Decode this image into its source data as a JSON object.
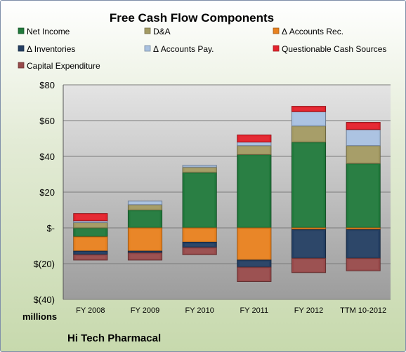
{
  "chart_data": {
    "type": "bar",
    "stacked": true,
    "title": "Free Cash Flow Components",
    "unit_label": "millions",
    "company": "Hi Tech Pharmacal",
    "categories": [
      "FY 2008",
      "FY 2009",
      "FY 2010",
      "FY 2011",
      "FY 2012",
      "TTM 10-2012"
    ],
    "ylim": [
      -40,
      80
    ],
    "yticks": [
      80,
      60,
      40,
      20,
      0,
      -20,
      -40
    ],
    "ytick_labels": [
      "$80",
      "$60",
      "$40",
      "$20",
      "$-",
      "$(20)",
      "$(40)"
    ],
    "grid": true,
    "legend_position": "top",
    "series": [
      {
        "name": "Net Income",
        "color": "#217a3c",
        "values": [
          -5,
          10,
          31,
          41,
          48,
          36
        ]
      },
      {
        "name": "D&A",
        "color": "#a39a63",
        "values": [
          3,
          3,
          3,
          5,
          9,
          10
        ]
      },
      {
        "name": "Δ Accounts Rec.",
        "color": "#e8811f",
        "values": [
          -8,
          -13,
          -8,
          -18,
          -1,
          -1
        ]
      },
      {
        "name": "Δ Inventories",
        "color": "#243f63",
        "values": [
          -2,
          -1,
          -3,
          -4,
          -16,
          -16
        ]
      },
      {
        "name": "Δ Accounts Pay.",
        "color": "#a9c1e0",
        "values": [
          1,
          2,
          1,
          2,
          8,
          9
        ]
      },
      {
        "name": "Questionable Cash Sources",
        "color": "#e4232d",
        "values": [
          4,
          0,
          0,
          4,
          3,
          4
        ]
      },
      {
        "name": "Capital Expenditure",
        "color": "#984a4b",
        "values": [
          -3,
          -4,
          -4,
          -8,
          -8,
          -7
        ]
      }
    ]
  }
}
